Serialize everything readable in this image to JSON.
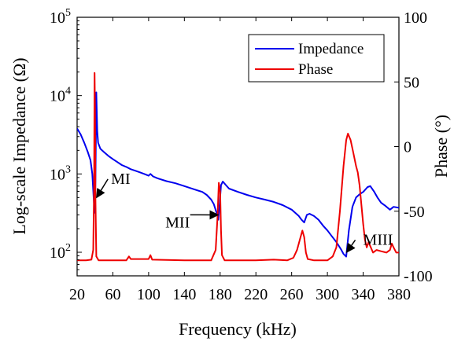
{
  "chart_data": {
    "type": "line",
    "xlabel": "Frequency (kHz)",
    "ylabel_left": "Log-scale Impedance (Ω)",
    "ylabel_right": "Phase (°)",
    "xlim": [
      20,
      380
    ],
    "ylim_left": [
      50,
      100000
    ],
    "ylim_right": [
      -100,
      100
    ],
    "left_scale": "log",
    "grid": false,
    "legend_position": "top-right",
    "x_ticks": [
      20,
      60,
      100,
      140,
      180,
      220,
      260,
      300,
      340,
      380
    ],
    "y_ticks_left": [
      {
        "value": 100,
        "base": "10",
        "exp": "2"
      },
      {
        "value": 1000,
        "base": "10",
        "exp": "3"
      },
      {
        "value": 10000,
        "base": "10",
        "exp": "4"
      },
      {
        "value": 100000,
        "base": "10",
        "exp": "5"
      }
    ],
    "y_ticks_right": [
      -100,
      -50,
      0,
      50,
      100
    ],
    "series": [
      {
        "name": "Impedance",
        "axis": "left",
        "color": "#0000ee",
        "points": [
          [
            20,
            3800
          ],
          [
            24,
            3200
          ],
          [
            28,
            2500
          ],
          [
            32,
            1900
          ],
          [
            35,
            1500
          ],
          [
            37,
            1000
          ],
          [
            38.5,
            500
          ],
          [
            39.5,
            320
          ],
          [
            40.5,
            800
          ],
          [
            41.5,
            11000
          ],
          [
            42.5,
            3500
          ],
          [
            43.5,
            2500
          ],
          [
            46,
            2100
          ],
          [
            50,
            1900
          ],
          [
            55,
            1700
          ],
          [
            60,
            1550
          ],
          [
            65,
            1420
          ],
          [
            70,
            1300
          ],
          [
            75,
            1230
          ],
          [
            80,
            1150
          ],
          [
            85,
            1100
          ],
          [
            90,
            1050
          ],
          [
            95,
            1000
          ],
          [
            100,
            950
          ],
          [
            102,
            1000
          ],
          [
            105,
            930
          ],
          [
            110,
            880
          ],
          [
            120,
            810
          ],
          [
            130,
            760
          ],
          [
            140,
            700
          ],
          [
            150,
            640
          ],
          [
            160,
            590
          ],
          [
            165,
            540
          ],
          [
            170,
            470
          ],
          [
            173,
            410
          ],
          [
            176,
            320
          ],
          [
            178,
            260
          ],
          [
            179.5,
            420
          ],
          [
            181,
            720
          ],
          [
            183,
            800
          ],
          [
            186,
            730
          ],
          [
            190,
            650
          ],
          [
            200,
            590
          ],
          [
            210,
            540
          ],
          [
            220,
            500
          ],
          [
            230,
            470
          ],
          [
            240,
            440
          ],
          [
            250,
            400
          ],
          [
            260,
            350
          ],
          [
            268,
            290
          ],
          [
            271,
            260
          ],
          [
            274,
            240
          ],
          [
            277,
            300
          ],
          [
            280,
            310
          ],
          [
            285,
            290
          ],
          [
            290,
            260
          ],
          [
            295,
            220
          ],
          [
            300,
            190
          ],
          [
            305,
            160
          ],
          [
            310,
            135
          ],
          [
            315,
            110
          ],
          [
            318,
            95
          ],
          [
            321,
            88
          ],
          [
            324,
            190
          ],
          [
            328,
            380
          ],
          [
            332,
            500
          ],
          [
            336,
            550
          ],
          [
            340,
            590
          ],
          [
            345,
            680
          ],
          [
            348,
            700
          ],
          [
            352,
            600
          ],
          [
            356,
            500
          ],
          [
            360,
            430
          ],
          [
            365,
            390
          ],
          [
            370,
            350
          ],
          [
            374,
            380
          ],
          [
            380,
            370
          ]
        ]
      },
      {
        "name": "Phase",
        "axis": "right",
        "color": "#ee0000",
        "points": [
          [
            20,
            -88
          ],
          [
            30,
            -88
          ],
          [
            36,
            -87.5
          ],
          [
            38,
            -80
          ],
          [
            39,
            -30
          ],
          [
            39.5,
            57
          ],
          [
            40,
            30
          ],
          [
            40.5,
            -40
          ],
          [
            41.5,
            -85
          ],
          [
            44,
            -88
          ],
          [
            60,
            -88
          ],
          [
            75,
            -88
          ],
          [
            78,
            -85
          ],
          [
            80,
            -87
          ],
          [
            100,
            -87
          ],
          [
            102,
            -84
          ],
          [
            104,
            -87.5
          ],
          [
            140,
            -88
          ],
          [
            170,
            -88
          ],
          [
            175,
            -80
          ],
          [
            177,
            -55
          ],
          [
            178.5,
            -28
          ],
          [
            180,
            -35
          ],
          [
            181,
            -65
          ],
          [
            182,
            -84
          ],
          [
            185,
            -88
          ],
          [
            200,
            -88
          ],
          [
            220,
            -88
          ],
          [
            240,
            -87.5
          ],
          [
            255,
            -88
          ],
          [
            262,
            -86
          ],
          [
            266,
            -80
          ],
          [
            270,
            -70
          ],
          [
            272,
            -65
          ],
          [
            274,
            -70
          ],
          [
            276,
            -82
          ],
          [
            278,
            -87
          ],
          [
            285,
            -88
          ],
          [
            300,
            -88
          ],
          [
            306,
            -85
          ],
          [
            310,
            -78
          ],
          [
            314,
            -50
          ],
          [
            318,
            -15
          ],
          [
            321,
            5
          ],
          [
            323,
            10
          ],
          [
            326,
            5
          ],
          [
            329,
            -5
          ],
          [
            332,
            -15
          ],
          [
            334,
            -20
          ],
          [
            336,
            -30
          ],
          [
            338,
            -45
          ],
          [
            340,
            -60
          ],
          [
            342,
            -72
          ],
          [
            344,
            -78
          ],
          [
            346,
            -74
          ],
          [
            348,
            -77
          ],
          [
            351,
            -82
          ],
          [
            355,
            -80
          ],
          [
            360,
            -81
          ],
          [
            366,
            -82
          ],
          [
            370,
            -80
          ],
          [
            372,
            -75
          ],
          [
            374,
            -78
          ],
          [
            377,
            -82
          ],
          [
            380,
            -82
          ]
        ]
      }
    ],
    "annotations": [
      {
        "label": "MI",
        "point": [
          40,
          0.5
        ],
        "text_at": [
          58,
          0.9
        ]
      },
      {
        "label": "MII",
        "point": [
          176,
          0.3
        ],
        "text_at": [
          150,
          0.5
        ]
      },
      {
        "label": "MIII",
        "point": [
          318,
          0.1
        ],
        "text_at": [
          340,
          0.15
        ]
      }
    ]
  }
}
